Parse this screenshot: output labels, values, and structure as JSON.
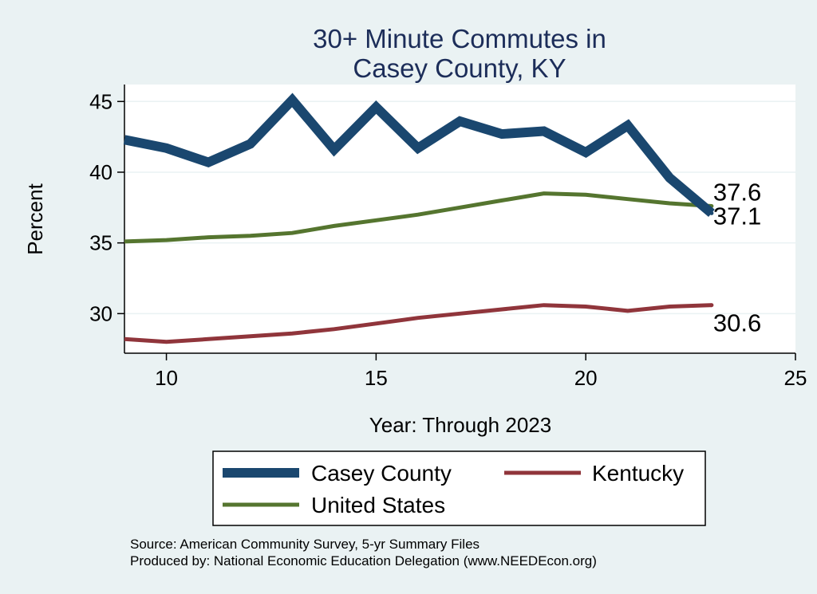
{
  "chart_data": {
    "type": "line",
    "title": [
      "30+ Minute Commutes in",
      "Casey County, KY"
    ],
    "xlabel": "Year: Through 2023",
    "ylabel": "Percent",
    "xlim": [
      9,
      25
    ],
    "ylim": [
      27.2,
      46.2
    ],
    "xticks": [
      10,
      15,
      20,
      25
    ],
    "yticks": [
      30,
      35,
      40,
      45
    ],
    "grid": true,
    "x": [
      9,
      10,
      11,
      12,
      13,
      14,
      15,
      16,
      17,
      18,
      19,
      20,
      21,
      22,
      23
    ],
    "series": [
      {
        "name": "Casey County",
        "color": "#1a476f",
        "values": [
          42.3,
          41.7,
          40.7,
          42.0,
          45.1,
          41.6,
          44.6,
          41.7,
          43.6,
          42.7,
          42.9,
          41.4,
          43.3,
          39.6,
          37.1
        ],
        "end_label": "37.1"
      },
      {
        "name": "Kentucky",
        "color": "#90353b",
        "values": [
          28.2,
          28.0,
          28.2,
          28.4,
          28.6,
          28.9,
          29.3,
          29.7,
          30.0,
          30.3,
          30.6,
          30.5,
          30.2,
          30.5,
          30.6
        ],
        "end_label": "30.6"
      },
      {
        "name": "United States",
        "color": "#55752f",
        "values": [
          35.1,
          35.2,
          35.4,
          35.5,
          35.7,
          36.2,
          36.6,
          37.0,
          37.5,
          38.0,
          38.5,
          38.4,
          38.1,
          37.8,
          37.6
        ],
        "end_label": "37.6"
      }
    ],
    "legend": [
      "Casey County",
      "Kentucky",
      "United States"
    ],
    "legend_position": "bottom"
  },
  "notes": {
    "source": "Source: American Community Survey, 5-yr Summary Files",
    "produced_by": "Produced by: National Economic Education Delegation (www.NEEDEcon.org)"
  }
}
